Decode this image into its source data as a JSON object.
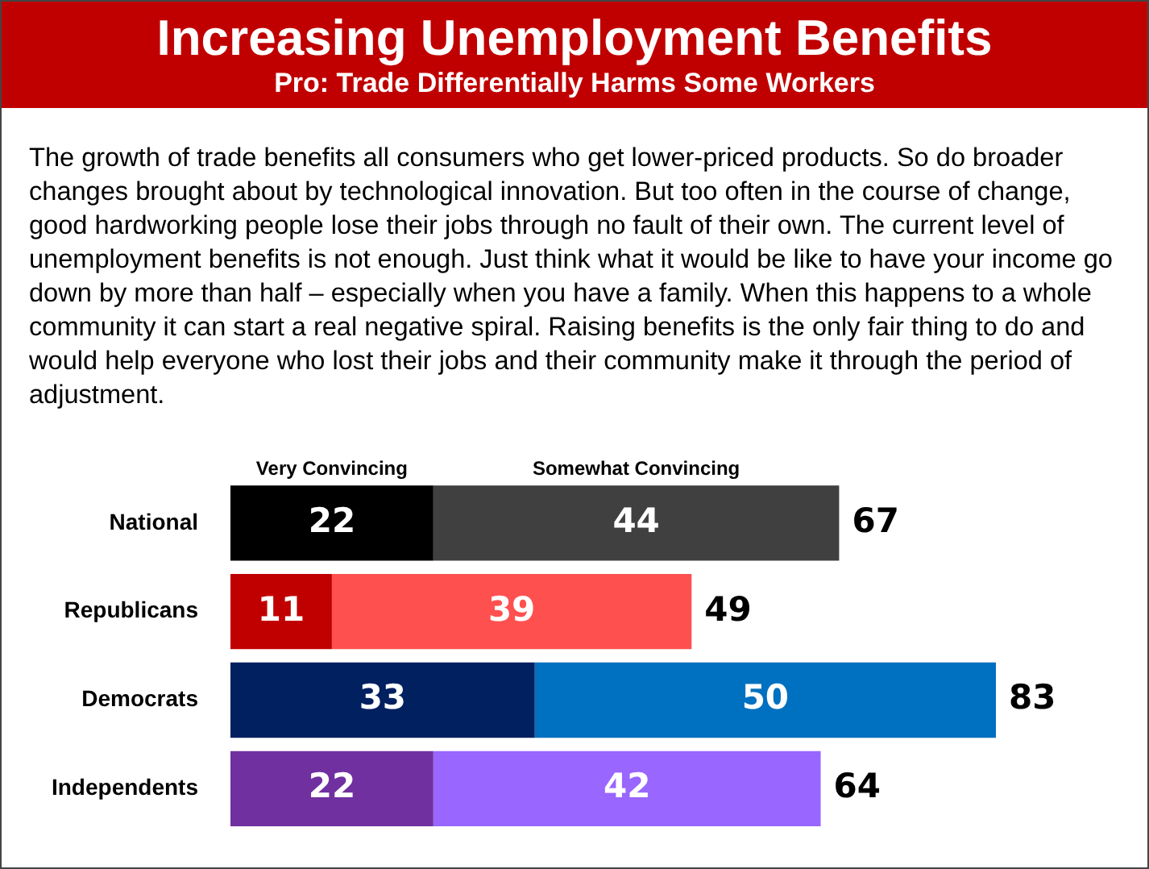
{
  "chart_data": {
    "type": "bar",
    "orientation": "horizontal",
    "stacked": true,
    "title": "Increasing Unemployment Benefits",
    "subtitle": "Pro: Trade Differentially Harms Some Workers",
    "annotations": [
      "The growth of trade benefits all consumers who get lower-priced products. So do broader changes brought about by technological innovation. But too often in the course of change, good hardworking people lose their jobs through no fault of their own. The current level of unemployment benefits is not enough. Just think what it would be like to have your income go down by more than half – especially when you have a family. When this happens to a whole community it can start a real negative spiral. Raising benefits is the only fair thing to do and would help everyone who lost their jobs and their community make it through the period of adjustment."
    ],
    "categories": [
      "National",
      "Republicans",
      "Democrats",
      "Independents"
    ],
    "series": [
      {
        "name": "Very Convincing",
        "colors": [
          "#000000",
          "#c00000",
          "#002060",
          "#7030a0"
        ],
        "values": [
          22,
          11,
          33,
          22
        ]
      },
      {
        "name": "Somewhat Convincing",
        "colors": [
          "#404040",
          "#ff5050",
          "#0070c0",
          "#9966ff"
        ],
        "values": [
          44,
          39,
          50,
          42
        ]
      }
    ],
    "data_labels": true,
    "totals": [
      "67",
      "49",
      "83",
      "64"
    ],
    "legend": "top"
  }
}
